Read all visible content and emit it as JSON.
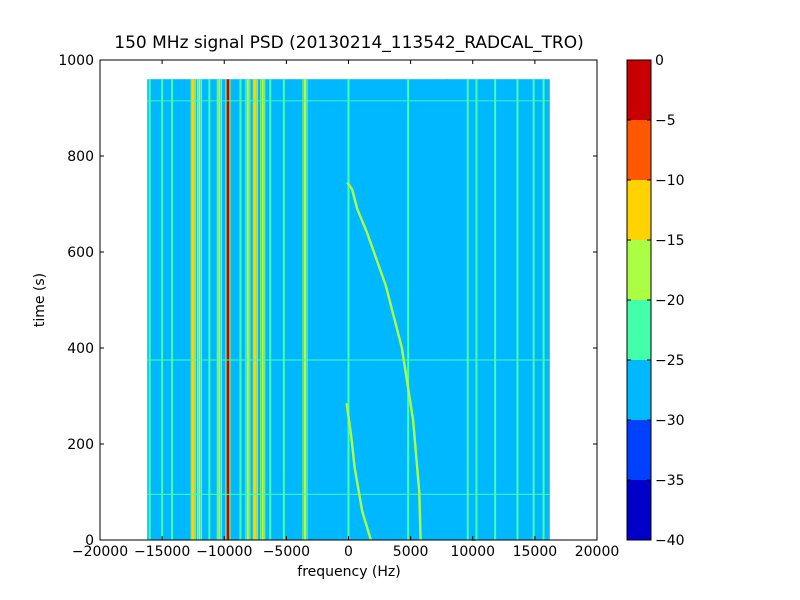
{
  "chart_data": {
    "type": "heatmap",
    "title": "150 MHz signal PSD (20130214_113542_RADCAL_TRO)",
    "xlabel": "frequency (Hz)",
    "ylabel": "time (s)",
    "xlim": [
      -20000,
      20000
    ],
    "ylim": [
      0,
      1000
    ],
    "x_ticks": [
      -20000,
      -15000,
      -10000,
      -5000,
      0,
      5000,
      10000,
      15000,
      20000
    ],
    "y_ticks": [
      0,
      200,
      400,
      600,
      800,
      1000
    ],
    "data_extent": {
      "x": [
        -16200,
        16200
      ],
      "y": [
        0,
        960
      ]
    },
    "background_level": -28,
    "colorbar": {
      "vmin": -40,
      "vmax": 0,
      "ticks": [
        0,
        -5,
        -10,
        -15,
        -20,
        -25,
        -30,
        -35,
        -40
      ],
      "levels": [
        {
          "from": -40,
          "to": -35,
          "color": "#0000c8"
        },
        {
          "from": -35,
          "to": -30,
          "color": "#0040ff"
        },
        {
          "from": -30,
          "to": -25,
          "color": "#00b8ff"
        },
        {
          "from": -25,
          "to": -20,
          "color": "#44ffaa"
        },
        {
          "from": -20,
          "to": -15,
          "color": "#aaff44"
        },
        {
          "from": -15,
          "to": -10,
          "color": "#ffd200"
        },
        {
          "from": -10,
          "to": -5,
          "color": "#ff5800"
        },
        {
          "from": -5,
          "to": 0,
          "color": "#c80000"
        }
      ]
    },
    "constant_lines": [
      {
        "freq": -16000,
        "level": -22
      },
      {
        "freq": -15000,
        "level": -22
      },
      {
        "freq": -14200,
        "level": -22
      },
      {
        "freq": -12500,
        "level": -12
      },
      {
        "freq": -12000,
        "level": -18
      },
      {
        "freq": -11200,
        "level": -22
      },
      {
        "freq": -10400,
        "level": -17
      },
      {
        "freq": -9700,
        "level": -2
      },
      {
        "freq": -8700,
        "level": -22
      },
      {
        "freq": -8100,
        "level": -18
      },
      {
        "freq": -7500,
        "level": -10
      },
      {
        "freq": -6900,
        "level": -17
      },
      {
        "freq": -6300,
        "level": -22
      },
      {
        "freq": -5200,
        "level": -22
      },
      {
        "freq": -3500,
        "level": -17
      },
      {
        "freq": 0,
        "level": -22
      },
      {
        "freq": 4800,
        "level": -22
      },
      {
        "freq": 9600,
        "level": -22
      },
      {
        "freq": 10300,
        "level": -20
      },
      {
        "freq": 11800,
        "level": -22
      },
      {
        "freq": 13600,
        "level": -20
      },
      {
        "freq": 14900,
        "level": -22
      },
      {
        "freq": 15700,
        "level": -22
      }
    ],
    "drifting_tracks": [
      {
        "level": -18,
        "points": [
          [
            1800,
            0
          ],
          [
            1100,
            60
          ],
          [
            500,
            150
          ],
          [
            200,
            220
          ],
          [
            -150,
            285
          ]
        ]
      },
      {
        "level": -18,
        "points": [
          [
            5800,
            0
          ],
          [
            5700,
            100
          ],
          [
            5200,
            250
          ],
          [
            4300,
            400
          ],
          [
            3000,
            530
          ],
          [
            1500,
            640
          ],
          [
            700,
            690
          ],
          [
            300,
            730
          ],
          [
            -100,
            745
          ]
        ]
      }
    ],
    "time_bands": [
      {
        "time": 95,
        "level": -22
      },
      {
        "time": 375,
        "level": -22
      },
      {
        "time": 915,
        "level": -22
      }
    ],
    "textured_region": {
      "x": [
        0,
        16000
      ],
      "level": -25
    }
  }
}
